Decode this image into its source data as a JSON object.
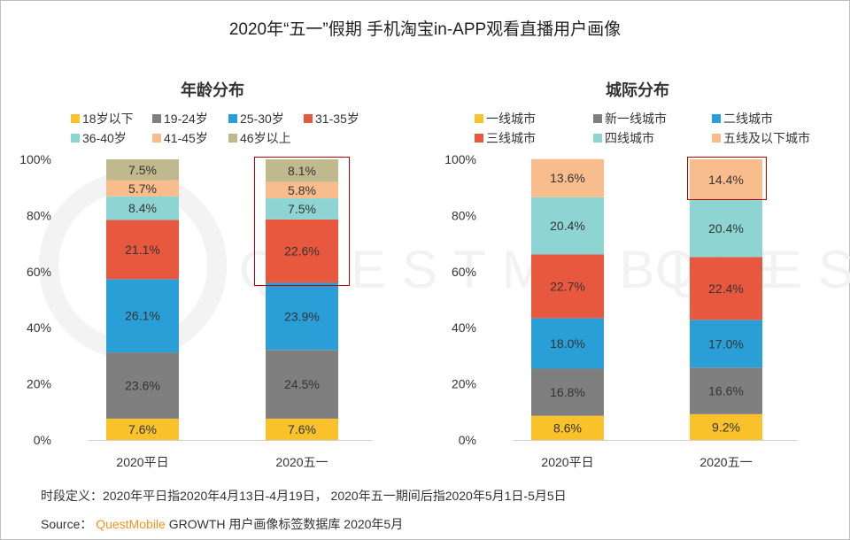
{
  "title": "2020年“五一”假期 手机淘宝in-APP观看直播用户画像",
  "footer": {
    "definition": "时段定义：2020年平日指2020年4月13日-4月19日， 2020年五一期间后指2020年5月1日-5月5日",
    "source_label": "Source：",
    "source_brand": "QuestMobile",
    "source_text": "GROWTH 用户画像标签数据库 2020年5月"
  },
  "watermark": "QUESTMOBILE",
  "chart_data": [
    {
      "type": "bar",
      "stacked": true,
      "title": "年龄分布",
      "categories": [
        "2020平日",
        "2020五一"
      ],
      "ylim": [
        0,
        100
      ],
      "yticks": [
        "0%",
        "20%",
        "40%",
        "60%",
        "80%",
        "100%"
      ],
      "legend_position": "top",
      "grid": false,
      "highlight_category": "2020五一",
      "highlight_series": [
        "31-35岁",
        "36-40岁",
        "41-45岁",
        "46岁以上"
      ],
      "series": [
        {
          "name": "18岁以下",
          "color": "#F9C22B",
          "values": [
            7.6,
            7.6
          ]
        },
        {
          "name": "19-24岁",
          "color": "#7F7F7F",
          "values": [
            23.6,
            24.5
          ]
        },
        {
          "name": "25-30岁",
          "color": "#2A9FD7",
          "values": [
            26.1,
            23.9
          ]
        },
        {
          "name": "31-35岁",
          "color": "#E8583F",
          "values": [
            21.1,
            22.6
          ]
        },
        {
          "name": "36-40岁",
          "color": "#8DD4D3",
          "values": [
            8.4,
            7.5
          ]
        },
        {
          "name": "41-45岁",
          "color": "#F9BD8D",
          "values": [
            5.7,
            5.8
          ]
        },
        {
          "name": "46岁以上",
          "color": "#C1B98E",
          "values": [
            7.5,
            8.1
          ]
        }
      ]
    },
    {
      "type": "bar",
      "stacked": true,
      "title": "城际分布",
      "categories": [
        "2020平日",
        "2020五一"
      ],
      "ylim": [
        0,
        100
      ],
      "yticks": [
        "0%",
        "20%",
        "40%",
        "60%",
        "80%",
        "100%"
      ],
      "legend_position": "top",
      "grid": false,
      "highlight_category": "2020五一",
      "highlight_series": [
        "五线及以下城市"
      ],
      "series": [
        {
          "name": "一线城市",
          "color": "#F9C22B",
          "values": [
            8.6,
            9.2
          ]
        },
        {
          "name": "新一线城市",
          "color": "#7F7F7F",
          "values": [
            16.8,
            16.6
          ]
        },
        {
          "name": "二线城市",
          "color": "#2A9FD7",
          "values": [
            18.0,
            17.0
          ]
        },
        {
          "name": "三线城市",
          "color": "#E8583F",
          "values": [
            22.7,
            22.4
          ]
        },
        {
          "name": "四线城市",
          "color": "#8DD4D3",
          "values": [
            20.4,
            20.4
          ]
        },
        {
          "name": "五线及以下城市",
          "color": "#F9BD8D",
          "values": [
            13.6,
            14.4
          ]
        }
      ]
    }
  ]
}
